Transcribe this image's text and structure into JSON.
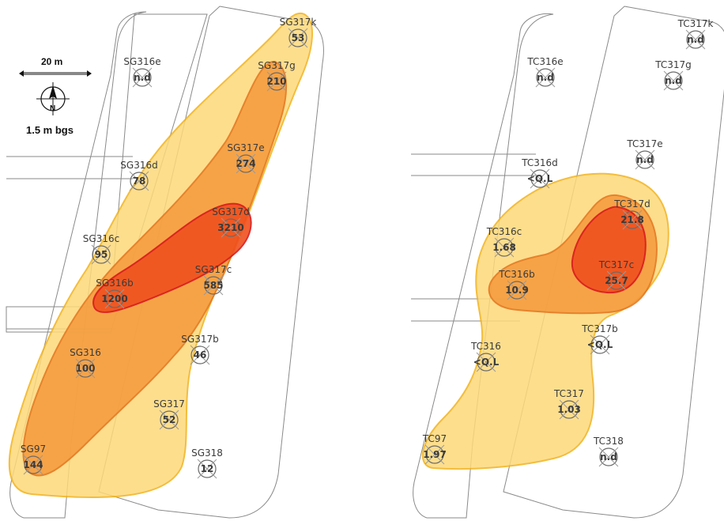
{
  "colors": {
    "low": "#fdd97a",
    "low_stroke": "#f2b21b",
    "mid": "#f5993b",
    "mid_stroke": "#e3731c",
    "high": "#f0501e",
    "high_stroke": "#d8181c"
  },
  "scale_bar": {
    "label": "20 m"
  },
  "north_arrow": {
    "label": "N",
    "icon": "north-arrow-icon"
  },
  "depth_label": "1.5 m bgs",
  "left_map": {
    "points": [
      {
        "id": "SG317k",
        "value": "53"
      },
      {
        "id": "SG316e",
        "value": "n.d"
      },
      {
        "id": "SG317g",
        "value": "210"
      },
      {
        "id": "SG317e",
        "value": "274"
      },
      {
        "id": "SG316d",
        "value": "78"
      },
      {
        "id": "SG317d",
        "value": "3210"
      },
      {
        "id": "SG316c",
        "value": "95"
      },
      {
        "id": "SG316b",
        "value": "1200"
      },
      {
        "id": "SG317c",
        "value": "585"
      },
      {
        "id": "SG317b",
        "value": "46"
      },
      {
        "id": "SG316",
        "value": "100"
      },
      {
        "id": "SG317",
        "value": "52"
      },
      {
        "id": "SG97",
        "value": "144"
      },
      {
        "id": "SG318",
        "value": "12"
      }
    ]
  },
  "right_map": {
    "points": [
      {
        "id": "TC317k",
        "value": "n.d"
      },
      {
        "id": "TC316e",
        "value": "n.d"
      },
      {
        "id": "TC317g",
        "value": "n.d"
      },
      {
        "id": "TC317e",
        "value": "n.d"
      },
      {
        "id": "TC316d",
        "value": "<Q.L"
      },
      {
        "id": "TC317d",
        "value": "21.8"
      },
      {
        "id": "TC316c",
        "value": "1.68"
      },
      {
        "id": "TC317c",
        "value": "25.7"
      },
      {
        "id": "TC316b",
        "value": "10.9"
      },
      {
        "id": "TC317b",
        "value": "<Q.L"
      },
      {
        "id": "TC316",
        "value": "<Q.L"
      },
      {
        "id": "TC317",
        "value": "1.03"
      },
      {
        "id": "TC318",
        "value": "n.d"
      },
      {
        "id": "TC97",
        "value": "1.97"
      }
    ]
  }
}
